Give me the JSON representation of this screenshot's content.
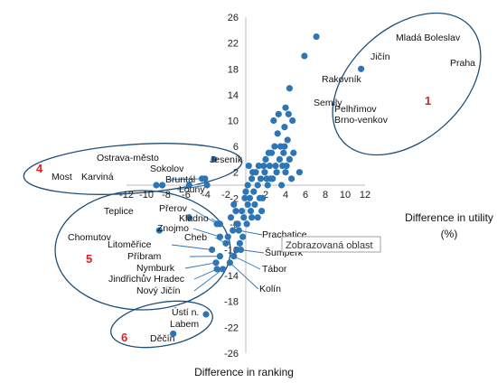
{
  "chart_data": {
    "type": "scatter",
    "xlabel_lines": [
      "Difference in utility",
      "(%)"
    ],
    "ylabel": "Difference in ranking",
    "xlim": [
      -12,
      12
    ],
    "ylim": [
      -26,
      26
    ],
    "xticks": [
      -12,
      -10,
      -8,
      -6,
      -4,
      -2,
      0,
      2,
      4,
      6,
      8,
      10,
      12
    ],
    "yticks": [
      -26,
      -22,
      -18,
      -14,
      -10,
      -6,
      -2,
      2,
      6,
      10,
      14,
      18,
      22,
      26
    ],
    "colors": {
      "point": "#2E75B6",
      "ellipse": "#1F4E79",
      "group_number": "#E02020"
    },
    "labeled_points": [
      {
        "name": "Mladá Boleslav",
        "x": 7.1,
        "y": 23
      },
      {
        "name": "Jičín",
        "x": 5.9,
        "y": 20
      },
      {
        "name": "Praha",
        "x": 11.6,
        "y": 18
      },
      {
        "name": "Rakovník",
        "x": 4.4,
        "y": 15
      },
      {
        "name": "Semily",
        "x": 4.0,
        "y": 12
      },
      {
        "name": "Pelhřimov",
        "x": 4.3,
        "y": 11
      },
      {
        "name": "Brno-venkov",
        "x": 4.7,
        "y": 10
      },
      {
        "name": "Jeseník",
        "x": -3.2,
        "y": 4
      },
      {
        "name": "Ostrava-město",
        "x": -5.7,
        "y": 0
      },
      {
        "name": "Sokolov",
        "x": -4.4,
        "y": 1
      },
      {
        "name": "Bruntál",
        "x": -4.1,
        "y": 1
      },
      {
        "name": "Louny",
        "x": -3.9,
        "y": 0
      },
      {
        "name": "Most",
        "x": -9.0,
        "y": 0
      },
      {
        "name": "Karviná",
        "x": -8.4,
        "y": 0
      },
      {
        "name": "Teplice",
        "x": -5.7,
        "y": -5
      },
      {
        "name": "Chomutov",
        "x": -8.7,
        "y": -7
      },
      {
        "name": "Přerov",
        "x": -2.9,
        "y": -6
      },
      {
        "name": "Kladno",
        "x": -2.6,
        "y": -6
      },
      {
        "name": "Znojmo",
        "x": -2.6,
        "y": -8
      },
      {
        "name": "Cheb",
        "x": -2.0,
        "y": -9
      },
      {
        "name": "Litoměřice",
        "x": -3.4,
        "y": -10
      },
      {
        "name": "Příbram",
        "x": -2.6,
        "y": -11
      },
      {
        "name": "Nymburk",
        "x": -3.0,
        "y": -12
      },
      {
        "name": "Jindřichův Hradec",
        "x": -2.9,
        "y": -13
      },
      {
        "name": "Nový Jičín",
        "x": -2.3,
        "y": -13
      },
      {
        "name": "Prachatice",
        "x": -0.7,
        "y": -7
      },
      {
        "name": "Šumperk",
        "x": -0.5,
        "y": -10
      },
      {
        "name": "Tábor",
        "x": -1.2,
        "y": -11
      },
      {
        "name": "Kolín",
        "x": -1.6,
        "y": -12
      },
      {
        "name": "Ústí n. Labem",
        "x": -4.0,
        "y": -20
      },
      {
        "name": "Děčín",
        "x": -7.3,
        "y": -23
      }
    ],
    "unlabeled_points": [
      [
        0.0,
        -1
      ],
      [
        0.2,
        0
      ],
      [
        0.4,
        -2
      ],
      [
        0.6,
        1
      ],
      [
        0.8,
        -1
      ],
      [
        1.0,
        2
      ],
      [
        1.2,
        0
      ],
      [
        1.3,
        3
      ],
      [
        1.5,
        1
      ],
      [
        1.7,
        -2
      ],
      [
        1.9,
        2
      ],
      [
        2.0,
        4
      ],
      [
        2.2,
        0
      ],
      [
        2.4,
        3
      ],
      [
        2.6,
        5
      ],
      [
        2.7,
        1
      ],
      [
        2.9,
        6
      ],
      [
        3.1,
        2
      ],
      [
        3.2,
        8
      ],
      [
        3.4,
        4
      ],
      [
        3.5,
        6
      ],
      [
        3.7,
        3
      ],
      [
        3.8,
        5
      ],
      [
        3.9,
        9
      ],
      [
        4.0,
        2
      ],
      [
        4.2,
        7
      ],
      [
        4.4,
        4
      ],
      [
        4.6,
        1
      ],
      [
        4.8,
        5
      ],
      [
        5.4,
        2
      ],
      [
        2.8,
        10
      ],
      [
        3.3,
        11
      ],
      [
        0.5,
        -4
      ],
      [
        1.2,
        -5
      ],
      [
        0.9,
        -3
      ],
      [
        0.2,
        -3
      ],
      [
        0.3,
        3
      ],
      [
        1.6,
        -4
      ],
      [
        2.1,
        1
      ],
      [
        0.7,
        2
      ],
      [
        3.0,
        3
      ],
      [
        1.8,
        3
      ],
      [
        2.5,
        1
      ],
      [
        3.6,
        0
      ],
      [
        4.1,
        3
      ],
      [
        3.9,
        6
      ],
      [
        1.4,
        -2
      ],
      [
        2.3,
        5
      ],
      [
        0.1,
        -6
      ],
      [
        0.6,
        -5
      ],
      [
        -0.3,
        -8
      ],
      [
        -0.6,
        -9
      ],
      [
        -0.2,
        -5
      ],
      [
        -0.8,
        -6
      ],
      [
        -1.0,
        -4
      ],
      [
        -1.3,
        -7
      ],
      [
        -1.5,
        -5
      ],
      [
        -1.8,
        -8
      ],
      [
        -0.4,
        -4
      ],
      [
        -0.9,
        -10
      ],
      [
        -1.2,
        -3
      ],
      [
        -0.1,
        -2
      ]
    ],
    "groups": [
      {
        "number": "1"
      },
      {
        "number": "4"
      },
      {
        "number": "5"
      },
      {
        "number": "6"
      }
    ],
    "tooltip": "Zobrazovaná oblast"
  }
}
